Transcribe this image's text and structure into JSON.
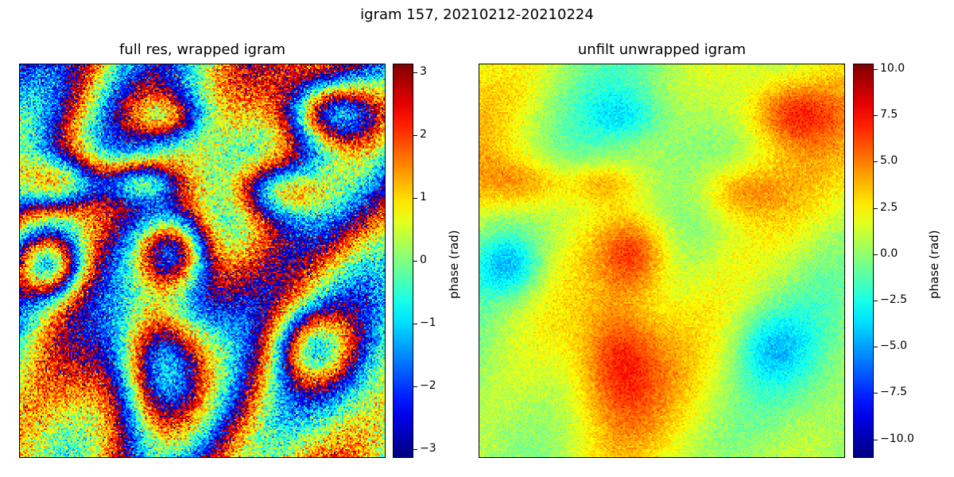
{
  "figure": {
    "title": "igram 157, 20210212-20210224"
  },
  "chart_data": [
    {
      "type": "heatmap",
      "title": "full res, wrapped igram",
      "colormap": "jet",
      "colorbar": {
        "label": "phase (rad)",
        "range": [
          -3.14159,
          3.14159
        ],
        "ticks": [
          3,
          2,
          1,
          0,
          -1,
          -2,
          -3
        ],
        "tick_labels": [
          "3",
          "2",
          "1",
          "0",
          "−1",
          "−2",
          "−3"
        ]
      },
      "wrapped": true,
      "axes_ticks": false
    },
    {
      "type": "heatmap",
      "title": "unfilt unwrapped igram",
      "colormap": "jet",
      "colorbar": {
        "label": "phase (rad)",
        "range": [
          -11,
          10.3
        ],
        "ticks": [
          10.0,
          7.5,
          5.0,
          2.5,
          0.0,
          -2.5,
          -5.0,
          -7.5,
          -10.0
        ],
        "tick_labels": [
          "10.0",
          "7.5",
          "5.0",
          "2.5",
          "0.0",
          "−2.5",
          "−5.0",
          "−7.5",
          "−10.0"
        ]
      },
      "wrapped": false,
      "axes_ticks": false
    }
  ]
}
